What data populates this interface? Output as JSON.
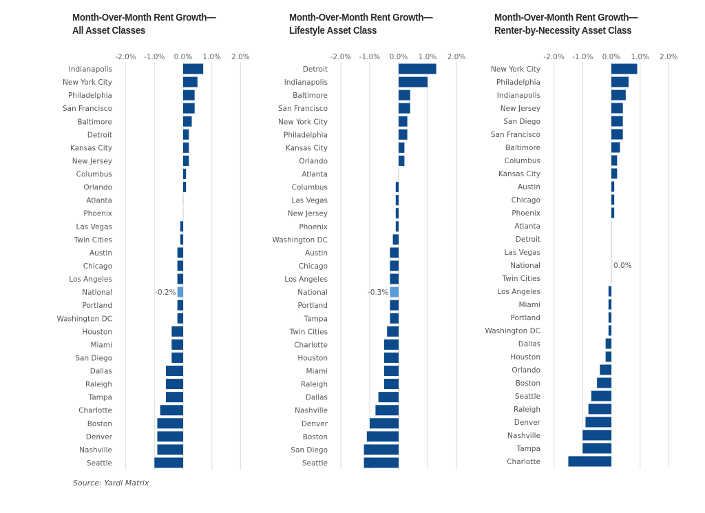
{
  "source": "Source: Yardi Matrix",
  "colors": {
    "bar": "#0c4a8c",
    "national": "#5b9bd5",
    "grid": "#e2e2e2"
  },
  "chart_data": [
    {
      "type": "bar",
      "orientation": "horizontal",
      "title_lines": [
        "Month-Over-Month Rent Growth—",
        "All Asset Classes"
      ],
      "title": "Month-Over-Month Rent Growth—All Asset Classes",
      "xlabel": "",
      "ylabel": "",
      "xlim": [
        -2.0,
        2.0
      ],
      "xticks": [
        -2.0,
        -1.0,
        0.0,
        1.0,
        2.0
      ],
      "xtick_labels": [
        "-2.0%",
        "-1.0%",
        "0.0%",
        "1.0%",
        "2.0%"
      ],
      "grid": true,
      "highlight": "National",
      "data_labels": {
        "National": "-0.2%"
      },
      "categories": [
        "Indianapolis",
        "New York City",
        "Philadelphia",
        "San Francisco",
        "Baltimore",
        "Detroit",
        "Kansas City",
        "New Jersey",
        "Columbus",
        "Orlando",
        "Atlanta",
        "Phoenix",
        "Las Vegas",
        "Twin Cities",
        "Austin",
        "Chicago",
        "Los Angeles",
        "National",
        "Portland",
        "Washington DC",
        "Houston",
        "Miami",
        "San Diego",
        "Dallas",
        "Raleigh",
        "Tampa",
        "Charlotte",
        "Boston",
        "Denver",
        "Nashville",
        "Seattle"
      ],
      "values": [
        0.7,
        0.5,
        0.4,
        0.4,
        0.3,
        0.2,
        0.2,
        0.2,
        0.1,
        0.1,
        0.0,
        0.0,
        -0.1,
        -0.1,
        -0.2,
        -0.2,
        -0.2,
        -0.2,
        -0.2,
        -0.2,
        -0.4,
        -0.4,
        -0.4,
        -0.6,
        -0.6,
        -0.6,
        -0.8,
        -0.9,
        -0.9,
        -0.9,
        -1.0
      ]
    },
    {
      "type": "bar",
      "orientation": "horizontal",
      "title_lines": [
        "Month-Over-Month Rent Growth—",
        "Lifestyle Asset Class"
      ],
      "title": "Month-Over-Month Rent Growth—Lifestyle Asset Class",
      "xlabel": "",
      "ylabel": "",
      "xlim": [
        -2.0,
        2.0
      ],
      "xticks": [
        -2.0,
        -1.0,
        0.0,
        1.0,
        2.0
      ],
      "xtick_labels": [
        "-2.0%",
        "-1.0%",
        "0.0%",
        "1.0%",
        "2.0%"
      ],
      "grid": true,
      "highlight": "National",
      "data_labels": {
        "National": "-0.3%"
      },
      "categories": [
        "Detroit",
        "Indianapolis",
        "Baltimore",
        "San Francisco",
        "New York City",
        "Philadelphia",
        "Kansas City",
        "Orlando",
        "Atlanta",
        "Columbus",
        "Las Vegas",
        "New Jersey",
        "Phoenix",
        "Washington DC",
        "Austin",
        "Chicago",
        "Los Angeles",
        "National",
        "Portland",
        "Tampa",
        "Twin Cities",
        "Charlotte",
        "Houston",
        "Miami",
        "Raleigh",
        "Dallas",
        "Nashville",
        "Denver",
        "Boston",
        "San Diego",
        "Seattle"
      ],
      "values": [
        1.3,
        1.0,
        0.4,
        0.4,
        0.3,
        0.3,
        0.2,
        0.2,
        0.0,
        -0.1,
        -0.1,
        -0.1,
        -0.1,
        -0.2,
        -0.3,
        -0.3,
        -0.3,
        -0.3,
        -0.3,
        -0.3,
        -0.4,
        -0.5,
        -0.5,
        -0.5,
        -0.5,
        -0.7,
        -0.8,
        -1.0,
        -1.1,
        -1.2,
        -1.2
      ]
    },
    {
      "type": "bar",
      "orientation": "horizontal",
      "title_lines": [
        "Month-Over-Month Rent Growth—",
        "Renter-by-Necessity Asset Class"
      ],
      "title": "Month-Over-Month Rent Growth—Renter-by-Necessity Asset Class",
      "xlabel": "",
      "ylabel": "",
      "xlim": [
        -2.0,
        2.0
      ],
      "xticks": [
        -2.0,
        -1.0,
        0.0,
        1.0,
        2.0
      ],
      "xtick_labels": [
        "-2.0%",
        "-1.0%",
        "0.0%",
        "1.0%",
        "2.0%"
      ],
      "grid": true,
      "highlight": "National",
      "data_labels": {
        "National": "0.0%"
      },
      "categories": [
        "New York City",
        "Philadelphia",
        "Indianapolis",
        "New Jersey",
        "San Diego",
        "San Francisco",
        "Baltimore",
        "Columbus",
        "Kansas City",
        "Austin",
        "Chicago",
        "Phoenix",
        "Atlanta",
        "Detroit",
        "Las Vegas",
        "National",
        "Twin Cities",
        "Los Angeles",
        "Miami",
        "Portland",
        "Washington DC",
        "Dallas",
        "Houston",
        "Orlando",
        "Boston",
        "Seattle",
        "Raleigh",
        "Denver",
        "Nashville",
        "Tampa",
        "Charlotte"
      ],
      "values": [
        0.9,
        0.6,
        0.5,
        0.4,
        0.4,
        0.4,
        0.3,
        0.2,
        0.2,
        0.1,
        0.1,
        0.1,
        0.0,
        0.0,
        0.0,
        0.0,
        0.0,
        -0.1,
        -0.1,
        -0.1,
        -0.1,
        -0.2,
        -0.2,
        -0.4,
        -0.5,
        -0.7,
        -0.8,
        -0.9,
        -1.0,
        -1.0,
        -1.5
      ]
    }
  ]
}
